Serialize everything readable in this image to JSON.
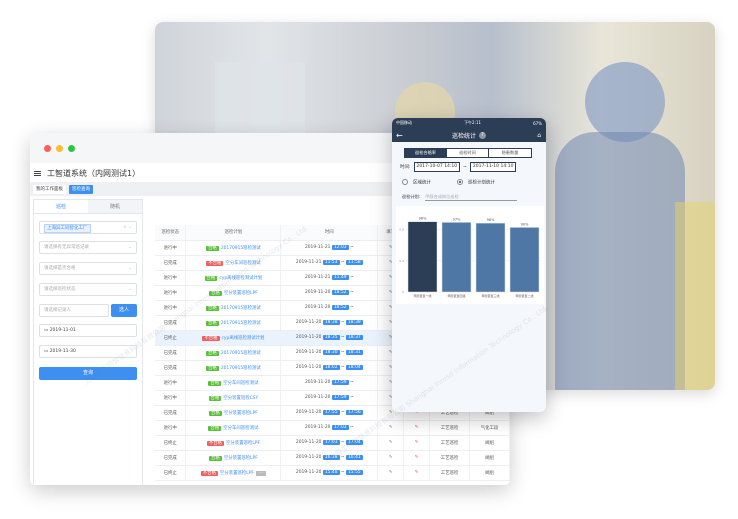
{
  "watermark": "上海异工同智信息科技有限公司 Shanghai Inrosd Information Technology Co., Ltd.",
  "app": {
    "title": "工智道系统（内网测试1）",
    "tabs": [
      {
        "label": "我的工作面板",
        "active": false
      },
      {
        "label": "巡检查询",
        "active": true
      }
    ]
  },
  "filters": {
    "tabs": [
      "巡检",
      "随机"
    ],
    "factory_chip": "上海异工同智化工厂",
    "abnormal_placeholder": "请选择有无异常巡记录",
    "qualified_placeholder": "请选择是否合格",
    "status_placeholder": "请选择巡检状态",
    "recorder_placeholder": "请选择记录人",
    "select_person": "选人",
    "start_date": "2019-11-01",
    "end_date": "2019-11-30",
    "query": "查询"
  },
  "table": {
    "headers": [
      "巡检状态",
      "巡检计划",
      "时间",
      "填写",
      "",
      "",
      ""
    ],
    "rows": [
      {
        "status": "进行中",
        "result": "合格",
        "plan": "20170915巡检测试",
        "date": "2019-11-21",
        "start": "12:03",
        "end": ""
      },
      {
        "status": "已完成",
        "result": "不合格",
        "plan": "空分车间巡检测试",
        "date": "2019-11-21",
        "start": "11:53",
        "end": "11:58"
      },
      {
        "status": "进行中",
        "result": "合格",
        "plan": "cyp离线巡检测试计划",
        "date": "2019-11-21",
        "start": "11:49",
        "end": ""
      },
      {
        "status": "进行中",
        "result": "合格",
        "plan": "空分装置巡检LPF",
        "date": "2019-11-20",
        "start": "18:52",
        "end": ""
      },
      {
        "status": "进行中",
        "result": "合格",
        "plan": "20170915巡检测试",
        "date": "2019-11-20",
        "start": "18:52",
        "end": ""
      },
      {
        "status": "已完成",
        "result": "合格",
        "plan": "20170915巡检测试",
        "date": "2019-11-20",
        "start": "18:38",
        "end": "18:39"
      },
      {
        "status": "已终止",
        "result": "不合格",
        "plan": "cyp离线巡检测试计划",
        "date": "2019-11-20",
        "start": "18:35",
        "end": "18:37",
        "highlight": true
      },
      {
        "status": "已完成",
        "result": "合格",
        "plan": "20170915巡检测试",
        "date": "2019-11-20",
        "start": "18:30",
        "end": "18:31"
      },
      {
        "status": "已完成",
        "result": "合格",
        "plan": "20170915巡检测试",
        "date": "2019-11-20",
        "start": "18:02",
        "end": "18:04"
      },
      {
        "status": "进行中",
        "result": "合格",
        "plan": "空分车间巡检测试",
        "date": "2019-11-20",
        "start": "17:59",
        "end": ""
      },
      {
        "status": "进行中",
        "result": "合格",
        "plan": "空分装置巡检CSY",
        "date": "2019-11-20",
        "start": "17:59",
        "end": ""
      },
      {
        "status": "已完成",
        "result": "合格",
        "plan": "空分装置巡检LPF",
        "date": "2019-11-20",
        "start": "17:55",
        "end": "17:56",
        "type": "工艺巡检",
        "area": "阀组"
      },
      {
        "status": "进行中",
        "result": "合格",
        "plan": "空分车间巡检测试",
        "date": "2019-11-20",
        "start": "17:03",
        "end": "",
        "type": "工艺巡检",
        "area": "气化工段"
      },
      {
        "status": "已终止",
        "result": "不合格",
        "plan": "空分装置巡检LPF",
        "date": "2019-11-20",
        "start": "17:03",
        "end": "17:04",
        "type": "工艺巡检",
        "area": "阀组"
      },
      {
        "status": "已完成",
        "result": "合格",
        "plan": "空分装置巡检LPF",
        "date": "2019-11-20",
        "start": "16:38",
        "end": "16:41",
        "type": "工艺巡检",
        "area": "阀组"
      },
      {
        "status": "已终止",
        "result": "不合格",
        "plan": "空分装置巡检LPF",
        "date": "2019-11-20",
        "start": "15:48",
        "end": "15:55",
        "type": "工艺巡检",
        "area": "阀组",
        "badge": "···"
      }
    ]
  },
  "mobile": {
    "carrier": "中国移动",
    "time": "下午2:11",
    "battery": "67%",
    "title": "巡检统计",
    "help": "?",
    "segments": [
      "巡检合格率",
      "巡检时间",
      "隐患数量"
    ],
    "time_label": "时间:",
    "start": "2017-10-07 14:10",
    "sep": "~",
    "end": "2017-11-10 14:10",
    "radios": [
      {
        "label": "区域统计",
        "checked": false
      },
      {
        "label": "巡检计划统计",
        "checked": true
      }
    ],
    "plan_label": "巡检计划:",
    "plan_placeholder": "甲醇合成岗位巡检"
  },
  "chart_data": {
    "type": "bar",
    "categories": [
      "甲醇装置一线",
      "甲醇装置四组",
      "甲醇装置三线",
      "甲醇装置二线"
    ],
    "values": [
      0.98,
      0.97,
      0.96,
      0.9
    ],
    "data_labels": [
      "98%",
      "97%",
      "96%",
      "90%"
    ],
    "ylim": [
      0,
      1
    ],
    "yticks": [
      "0",
      "0.4",
      "0.8"
    ],
    "colors": [
      "#2c3e55",
      "#4f77a6",
      "#4f77a6",
      "#4f77a6"
    ],
    "grid": true
  }
}
